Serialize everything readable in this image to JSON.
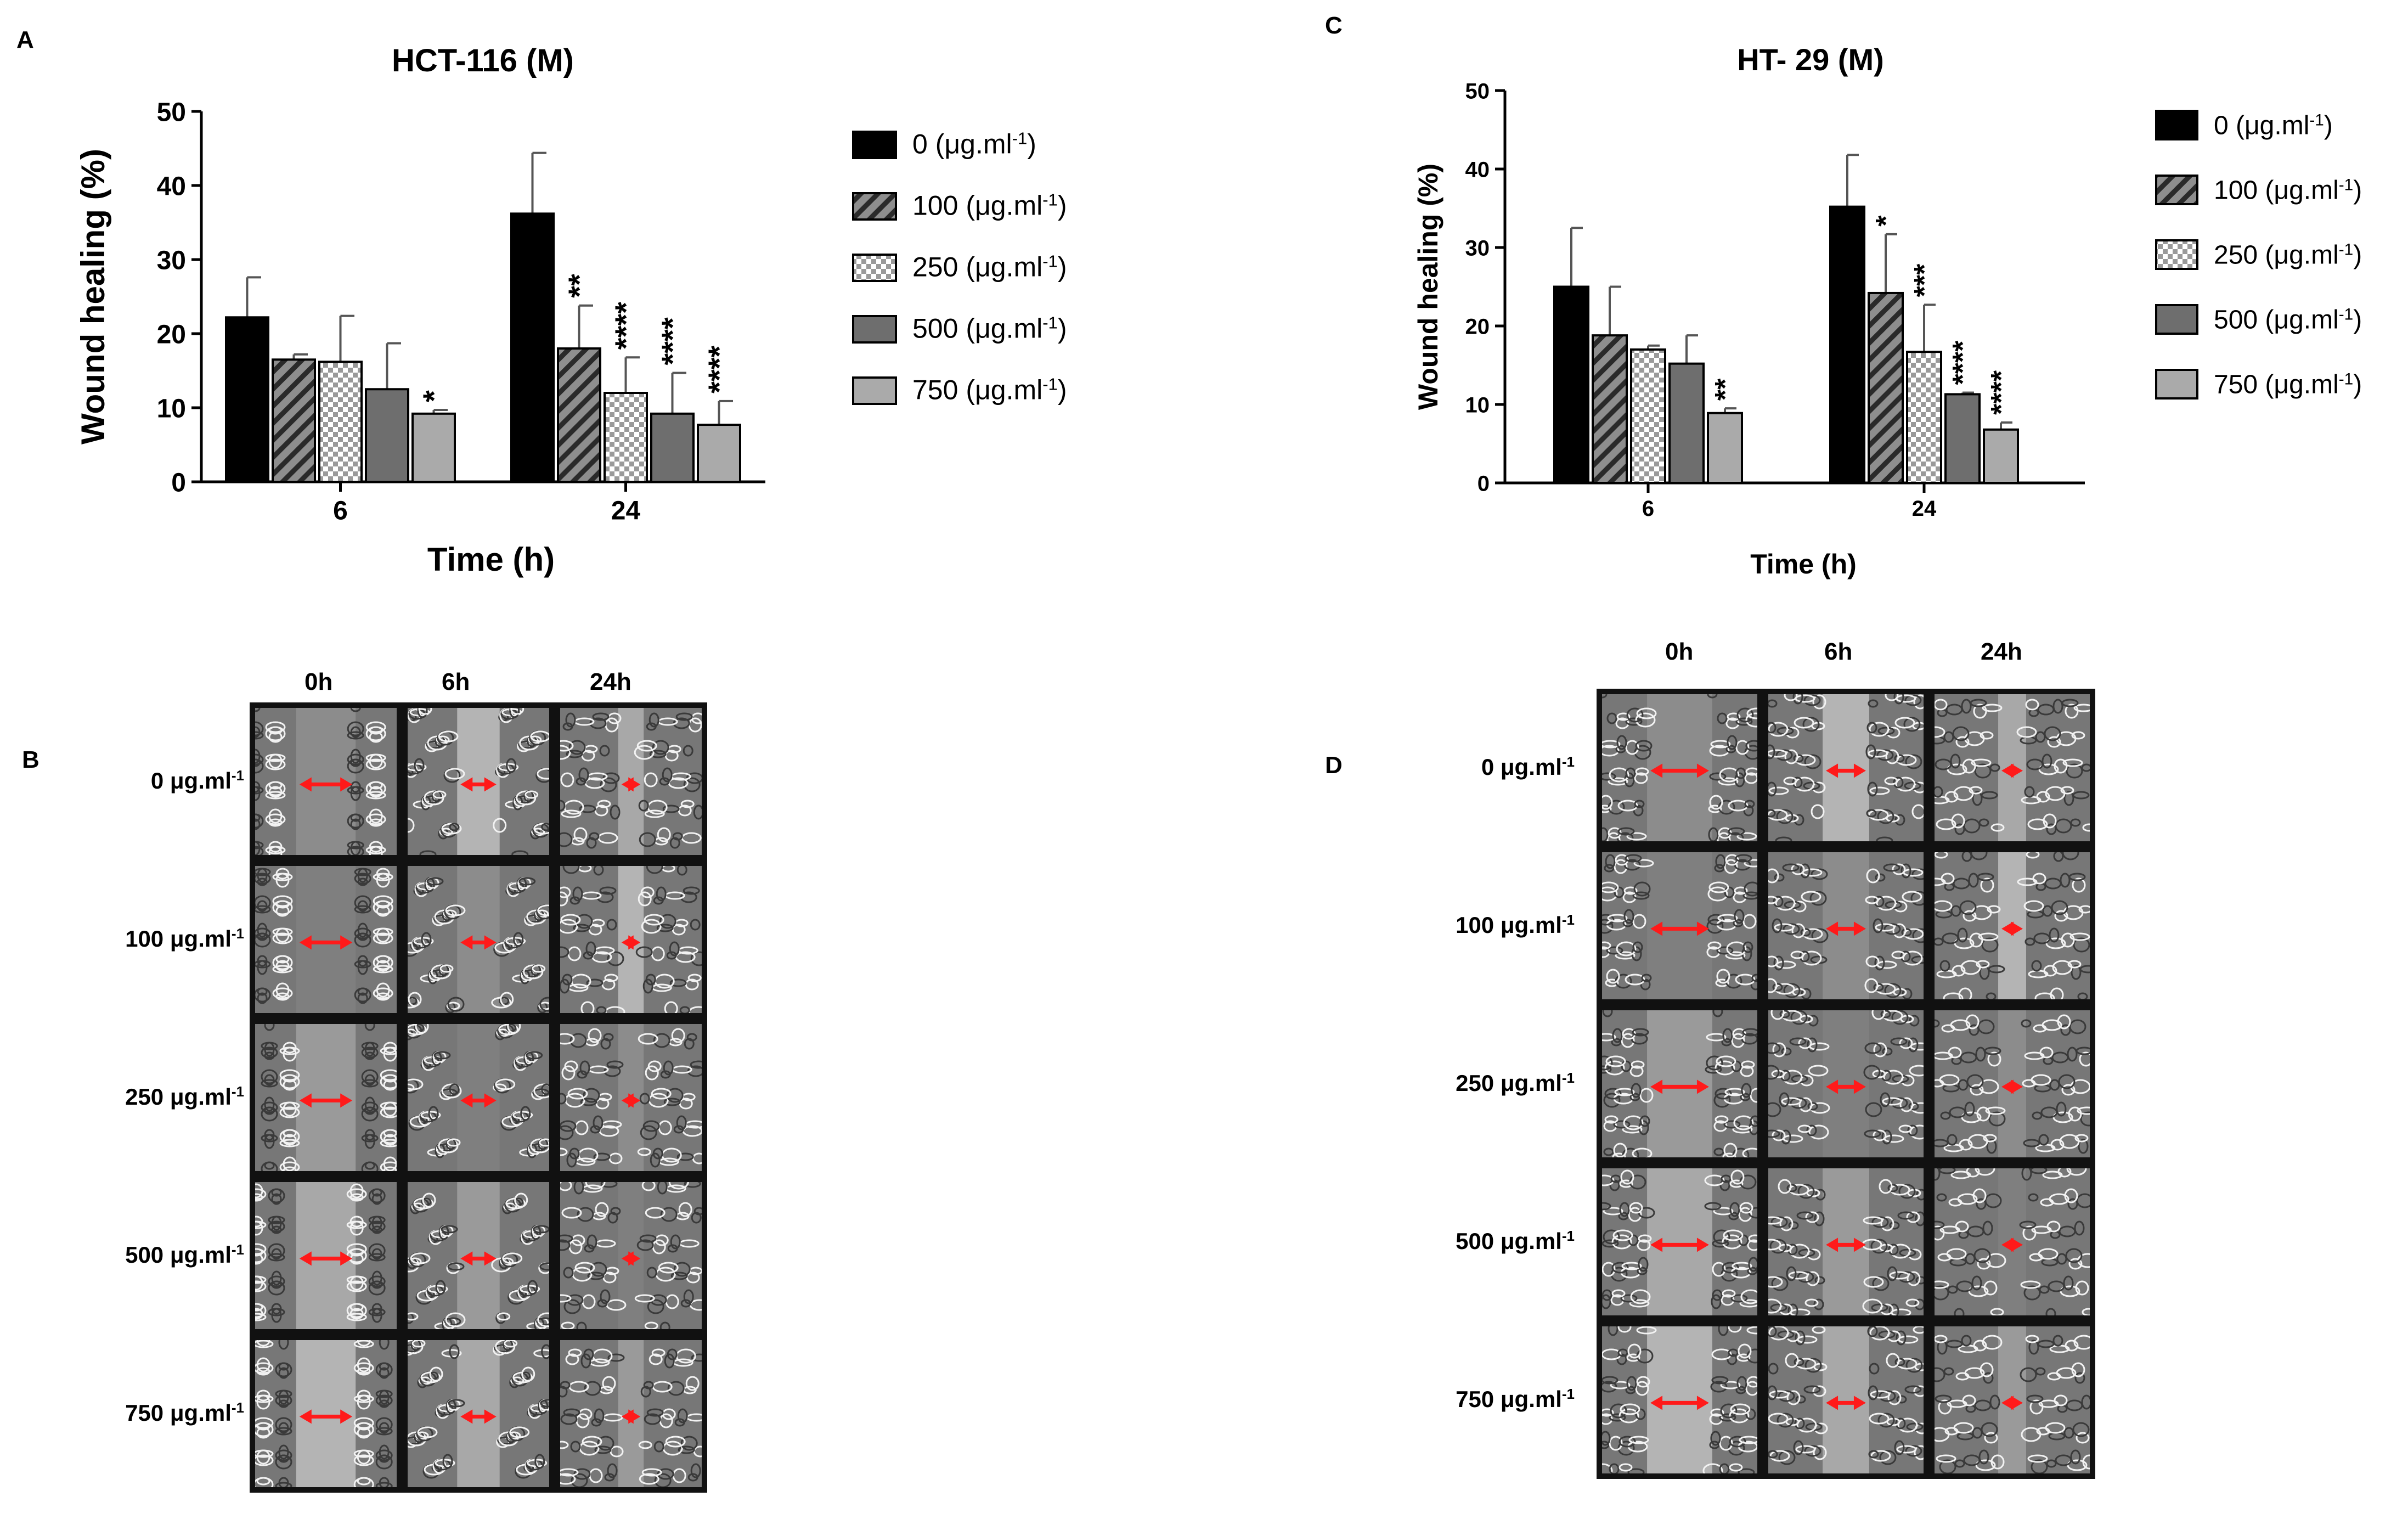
{
  "panels": {
    "A": "A",
    "B": "B",
    "C": "C",
    "D": "D"
  },
  "concentration_unit": "μg.ml",
  "concentration_exp": "-1",
  "chart_data": [
    {
      "type": "bar",
      "title": "HCT-116 (M)",
      "xlabel": "Time (h)",
      "ylabel": "Wound healing (%)",
      "categories": [
        "6",
        "24"
      ],
      "ylim": [
        0,
        50
      ],
      "yticks": [
        0,
        10,
        20,
        30,
        40,
        50
      ],
      "legend_position": "right",
      "series": [
        {
          "name": "0",
          "pattern": "black",
          "values": [
            22.2,
            36.2
          ],
          "errors": [
            5.4,
            8.2
          ],
          "sig": [
            "",
            ""
          ]
        },
        {
          "name": "100",
          "pattern": "hatch",
          "values": [
            16.5,
            18.0
          ],
          "errors": [
            0.7,
            5.8
          ],
          "sig": [
            "",
            "**"
          ]
        },
        {
          "name": "250",
          "pattern": "check",
          "values": [
            16.2,
            12.0
          ],
          "errors": [
            6.2,
            4.8
          ],
          "sig": [
            "",
            "****"
          ]
        },
        {
          "name": "500",
          "pattern": "darkgray",
          "values": [
            12.5,
            9.2
          ],
          "errors": [
            6.2,
            5.5
          ],
          "sig": [
            "",
            "****"
          ]
        },
        {
          "name": "750",
          "pattern": "lightgray",
          "values": [
            9.2,
            7.7
          ],
          "errors": [
            0.5,
            3.2
          ],
          "sig": [
            "*",
            "****"
          ]
        }
      ]
    },
    {
      "type": "bar",
      "title": "HT- 29 (M)",
      "xlabel": "Time (h)",
      "ylabel": "Wound healing (%)",
      "categories": [
        "6",
        "24"
      ],
      "ylim": [
        0,
        50
      ],
      "yticks": [
        0,
        10,
        20,
        30,
        40,
        50
      ],
      "legend_position": "right",
      "series": [
        {
          "name": "0",
          "pattern": "black",
          "values": [
            25.0,
            35.2
          ],
          "errors": [
            7.5,
            6.6
          ],
          "sig": [
            "",
            ""
          ]
        },
        {
          "name": "100",
          "pattern": "hatch",
          "values": [
            18.8,
            24.2
          ],
          "errors": [
            6.2,
            7.5
          ],
          "sig": [
            "",
            "*"
          ]
        },
        {
          "name": "250",
          "pattern": "check",
          "values": [
            17.0,
            16.7
          ],
          "errors": [
            0.5,
            6.0
          ],
          "sig": [
            "",
            "***"
          ]
        },
        {
          "name": "500",
          "pattern": "darkgray",
          "values": [
            15.2,
            11.3
          ],
          "errors": [
            3.6,
            0.2
          ],
          "sig": [
            "",
            "****"
          ]
        },
        {
          "name": "750",
          "pattern": "lightgray",
          "values": [
            8.9,
            6.8
          ],
          "errors": [
            0.6,
            0.9
          ],
          "sig": [
            "**",
            "****"
          ]
        }
      ]
    }
  ],
  "micrographs": {
    "B": {
      "time_points": [
        "0h",
        "6h",
        "24h"
      ],
      "rows": [
        "0",
        "100",
        "250",
        "500",
        "750"
      ]
    },
    "D": {
      "time_points": [
        "0h",
        "6h",
        "24h"
      ],
      "rows": [
        "0",
        "100",
        "250",
        "500",
        "750"
      ]
    }
  }
}
